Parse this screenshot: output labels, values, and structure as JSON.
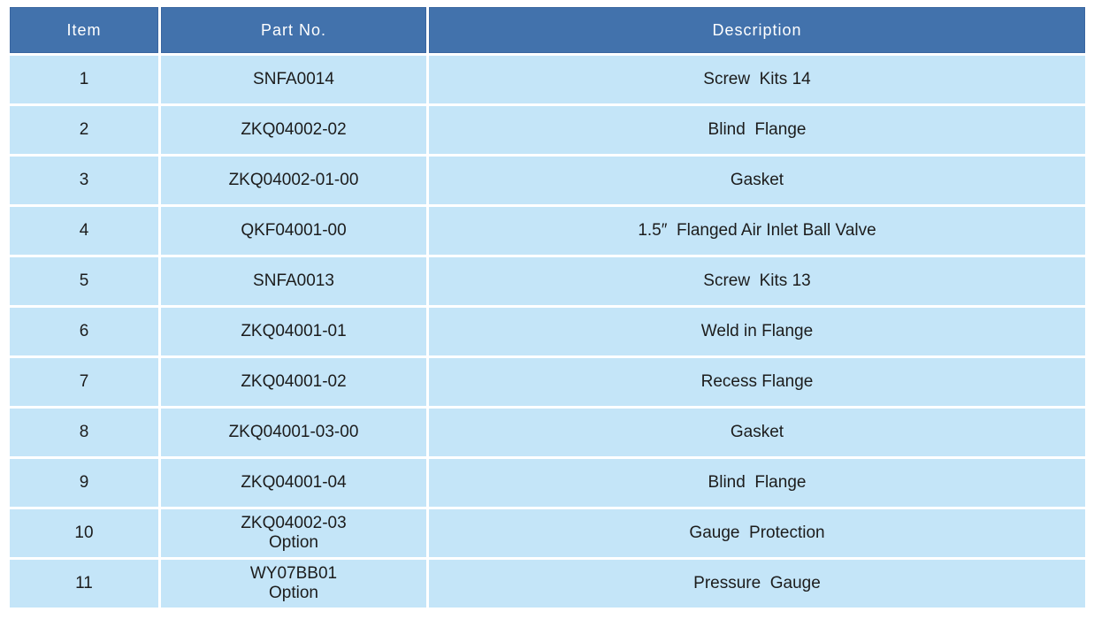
{
  "table": {
    "columns": [
      {
        "label": "Item"
      },
      {
        "label": "Part No."
      },
      {
        "label": "Description"
      }
    ],
    "rows": [
      {
        "item": "1",
        "part_no": "SNFA0014",
        "description": "Screw  Kits 14"
      },
      {
        "item": "2",
        "part_no": "ZKQ04002-02",
        "description": "Blind  Flange"
      },
      {
        "item": "3",
        "part_no": "ZKQ04002-01-00",
        "description": "Gasket"
      },
      {
        "item": "4",
        "part_no": "QKF04001-00",
        "description": "1.5″  Flanged Air Inlet Ball Valve"
      },
      {
        "item": "5",
        "part_no": "SNFA0013",
        "description": "Screw  Kits 13"
      },
      {
        "item": "6",
        "part_no": "ZKQ04001-01",
        "description": "Weld in Flange"
      },
      {
        "item": "7",
        "part_no": "ZKQ04001-02",
        "description": "Recess Flange"
      },
      {
        "item": "8",
        "part_no": "ZKQ04001-03-00",
        "description": "Gasket"
      },
      {
        "item": "9",
        "part_no": "ZKQ04001-04",
        "description": "Blind  Flange"
      },
      {
        "item": "10",
        "part_no": "ZKQ04002-03\nOption",
        "description": "Gauge  Protection"
      },
      {
        "item": "11",
        "part_no": "WY07BB01\nOption",
        "description": "Pressure  Gauge"
      }
    ]
  },
  "colors": {
    "header_background": "#4272AC",
    "header_border": "#3A66A0",
    "row_background": "#C4E5F8",
    "header_text": "#FFFFFF",
    "body_text": "#1C1C1C",
    "grid_gap": "#FFFFFF"
  }
}
